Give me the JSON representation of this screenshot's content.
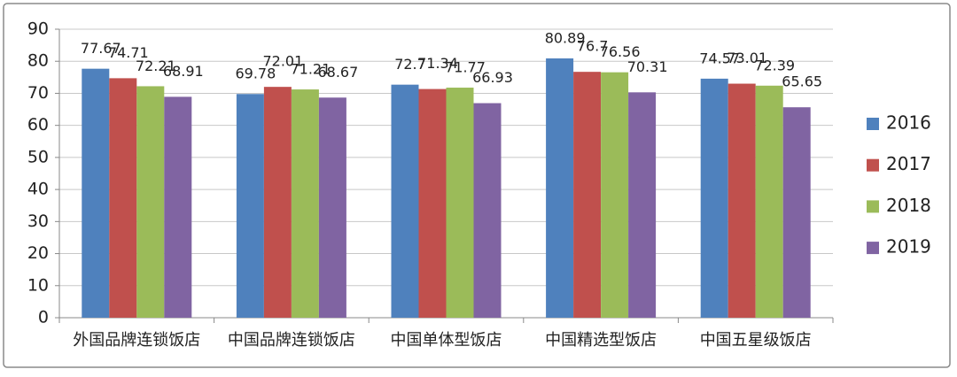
{
  "chart_data": {
    "type": "bar",
    "categories": [
      "外国品牌连锁饭店",
      "中国品牌连锁饭店",
      "中国单体型饭店",
      "中国精选型饭店",
      "中国五星级饭店"
    ],
    "series": [
      {
        "name": "2016",
        "color": "#4f81bd",
        "values": [
          77.67,
          69.78,
          72.7,
          80.89,
          74.57
        ]
      },
      {
        "name": "2017",
        "color": "#c0504d",
        "values": [
          74.71,
          72.01,
          71.34,
          76.7,
          73.01
        ]
      },
      {
        "name": "2018",
        "color": "#9bbb59",
        "values": [
          72.21,
          71.21,
          71.77,
          76.56,
          72.39
        ]
      },
      {
        "name": "2019",
        "color": "#8064a2",
        "values": [
          68.91,
          68.67,
          66.93,
          70.31,
          65.65
        ]
      }
    ],
    "ylim": [
      0,
      90
    ],
    "yticks": [
      0,
      10,
      20,
      30,
      40,
      50,
      60,
      70,
      80,
      90
    ],
    "grid": true,
    "legend": "right"
  }
}
